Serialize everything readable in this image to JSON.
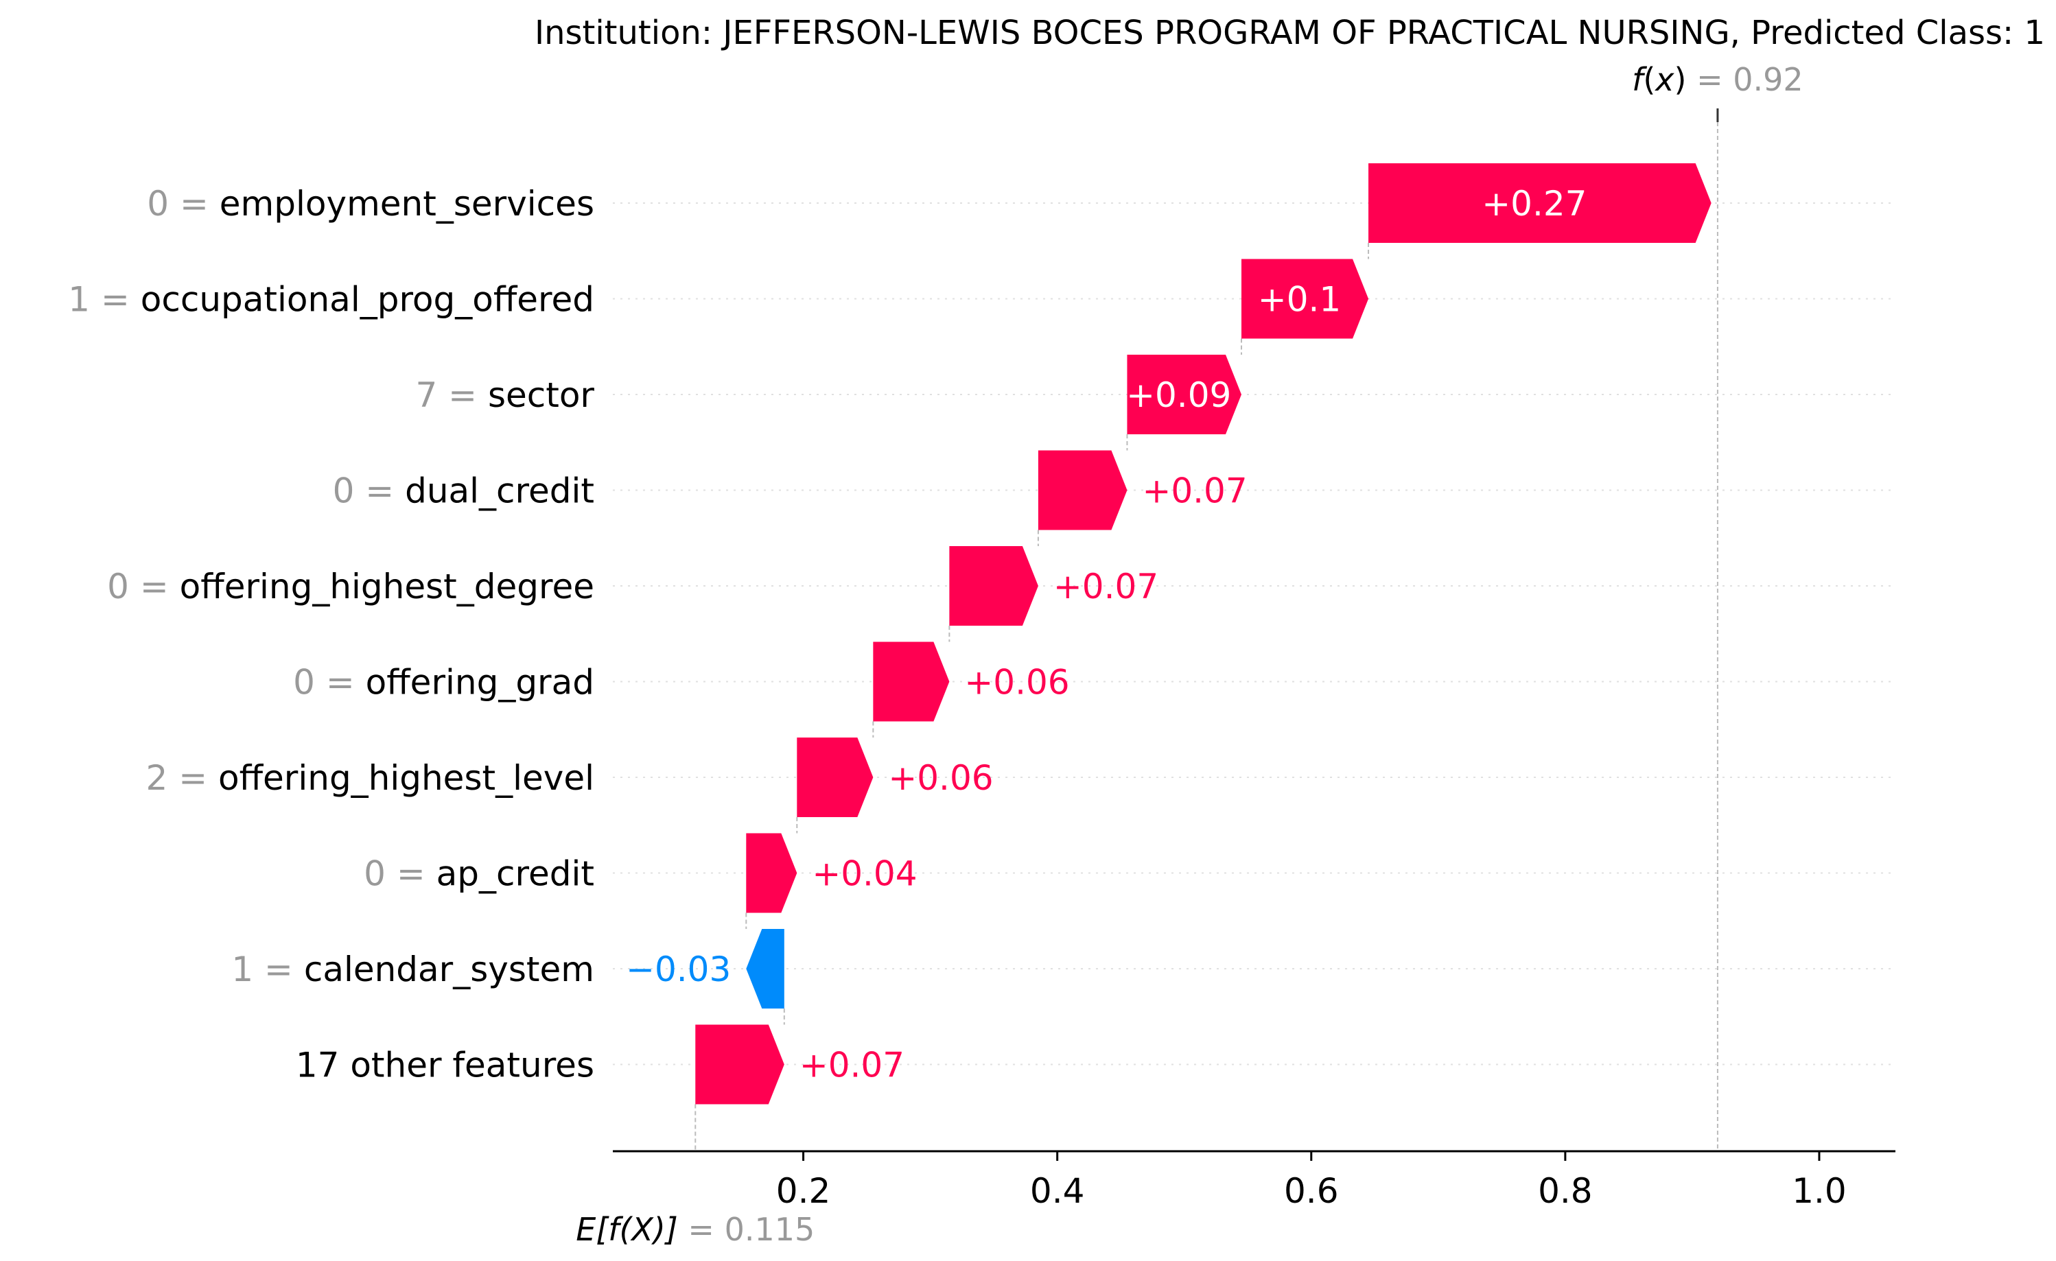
{
  "chart_data": {
    "type": "waterfall",
    "title": "Institution: JEFFERSON-LEWIS BOCES PROGRAM OF PRACTICAL NURSING, Predicted Class: 1",
    "fx": {
      "label_func": "f",
      "label_var": "x",
      "value_text": "0.92",
      "value": 0.92
    },
    "base": {
      "label_func": "E[f(X)]",
      "value_text": "0.115",
      "value": 0.115
    },
    "xlim": [
      0.05,
      1.06
    ],
    "xticks": [
      0.2,
      0.4,
      0.6,
      0.8,
      1.0
    ],
    "xtick_labels": [
      "0.2",
      "0.4",
      "0.6",
      "0.8",
      "1.0"
    ],
    "features": [
      {
        "value": "0",
        "name": "employment_services",
        "contribution": 0.27,
        "label": "+0.27",
        "label_inside": true
      },
      {
        "value": "1",
        "name": "occupational_prog_offered",
        "contribution": 0.1,
        "label": "+0.1",
        "label_inside": true
      },
      {
        "value": "7",
        "name": "sector",
        "contribution": 0.09,
        "label": "+0.09",
        "label_inside": true
      },
      {
        "value": "0",
        "name": "dual_credit",
        "contribution": 0.07,
        "label": "+0.07",
        "label_inside": false
      },
      {
        "value": "0",
        "name": "offering_highest_degree",
        "contribution": 0.07,
        "label": "+0.07",
        "label_inside": false
      },
      {
        "value": "0",
        "name": "offering_grad",
        "contribution": 0.06,
        "label": "+0.06",
        "label_inside": false
      },
      {
        "value": "2",
        "name": "offering_highest_level",
        "contribution": 0.06,
        "label": "+0.06",
        "label_inside": false
      },
      {
        "value": "0",
        "name": "ap_credit",
        "contribution": 0.04,
        "label": "+0.04",
        "label_inside": false
      },
      {
        "value": "1",
        "name": "calendar_system",
        "contribution": -0.03,
        "label": "−0.03",
        "label_inside": false
      },
      {
        "value": "",
        "name": "17 other features",
        "contribution": 0.07,
        "label": "+0.07",
        "label_inside": false
      }
    ],
    "colors": {
      "positive": "#ff0051",
      "negative": "#008bfb",
      "value_gray": "#999999",
      "text": "#000000",
      "grid": "#e0e0e0",
      "connector": "#bbbbbb"
    }
  }
}
